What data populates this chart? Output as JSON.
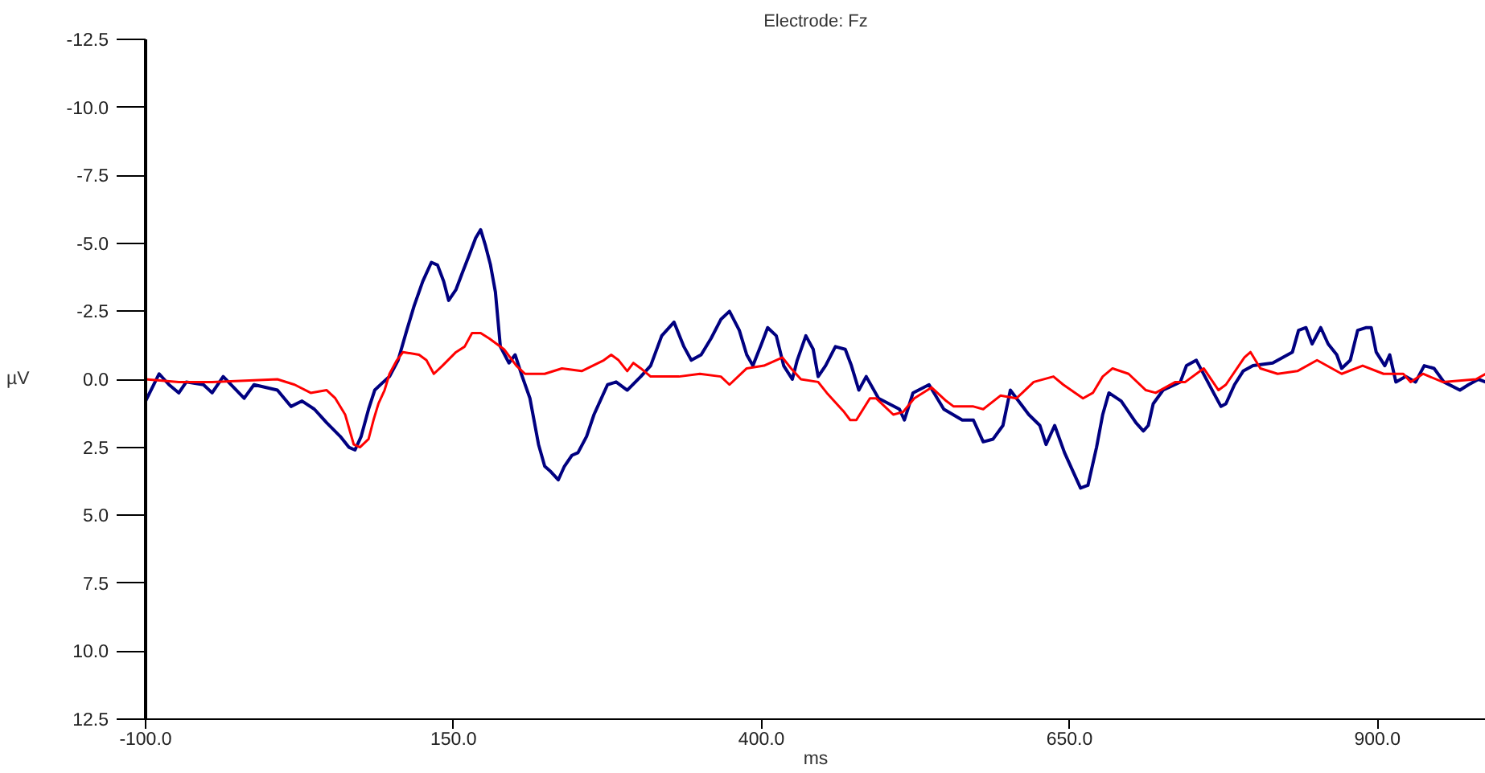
{
  "chart_data": {
    "type": "line",
    "title": "Electrode: Fz",
    "xlabel": "ms",
    "ylabel": "µV",
    "xlim": [
      -100,
      988
    ],
    "ylim": [
      12.5,
      -12.5
    ],
    "xticks": [
      {
        "value": -100,
        "label": "-100.0"
      },
      {
        "value": 150,
        "label": "150.0"
      },
      {
        "value": 400,
        "label": "400.0"
      },
      {
        "value": 650,
        "label": "650.0"
      },
      {
        "value": 900,
        "label": "900.0"
      }
    ],
    "yticks": [
      {
        "value": -12.5,
        "label": "-12.5"
      },
      {
        "value": -10,
        "label": "-10.0"
      },
      {
        "value": -7.5,
        "label": "-7.5"
      },
      {
        "value": -5,
        "label": "-5.0"
      },
      {
        "value": -2.5,
        "label": "-2.5"
      },
      {
        "value": 0,
        "label": "0.0"
      },
      {
        "value": 2.5,
        "label": "2.5"
      },
      {
        "value": 5,
        "label": "5.0"
      },
      {
        "value": 7.5,
        "label": "7.5"
      },
      {
        "value": 10,
        "label": "10.0"
      },
      {
        "value": 12.5,
        "label": "12.5"
      }
    ],
    "grid": false,
    "series": [
      {
        "color": "#000080",
        "x": [
          -100,
          -89,
          -81,
          -73,
          -67,
          -53,
          -46,
          -37,
          -20,
          -12,
          7,
          18,
          27,
          37,
          47,
          58,
          65,
          70,
          75,
          81,
          86,
          93,
          98,
          105,
          112,
          118,
          125,
          132,
          137,
          142,
          146,
          152,
          157,
          163,
          168,
          172,
          176,
          180,
          184,
          188,
          195,
          200,
          205,
          212,
          219,
          224,
          229,
          235,
          240,
          246,
          251,
          258,
          264,
          275,
          282,
          291,
          302,
          310,
          319,
          329,
          337,
          343,
          351,
          359,
          367,
          374,
          382,
          388,
          393,
          400,
          405,
          412,
          418,
          425,
          429,
          436,
          442,
          446,
          452,
          460,
          468,
          473,
          479,
          485,
          495,
          512,
          516,
          523,
          536,
          548,
          563,
          572,
          580,
          588,
          596,
          602,
          607,
          617,
          626,
          631,
          638,
          646,
          653,
          659,
          665,
          672,
          677,
          682,
          692,
          704,
          710,
          714,
          718,
          726,
          740,
          745,
          753,
          760,
          767,
          773,
          777,
          784,
          791,
          799,
          815,
          831,
          836,
          842,
          847,
          854,
          860,
          867,
          871,
          878,
          884,
          891,
          895,
          899,
          906,
          910,
          915,
          923,
          931,
          938,
          946,
          954,
          967,
          974,
          982,
          988
        ],
        "values": [
          0.8,
          -0.2,
          0.2,
          0.5,
          0.1,
          0.2,
          0.5,
          -0.1,
          0.7,
          0.2,
          0.4,
          1.0,
          0.8,
          1.1,
          1.6,
          2.1,
          2.5,
          2.6,
          2.1,
          1.1,
          0.4,
          0.1,
          -0.1,
          -0.7,
          -1.8,
          -2.7,
          -3.6,
          -4.3,
          -4.2,
          -3.6,
          -2.9,
          -3.3,
          -3.9,
          -4.6,
          -5.2,
          -5.5,
          -4.9,
          -4.2,
          -3.2,
          -1.2,
          -0.6,
          -0.9,
          -0.2,
          0.7,
          2.4,
          3.2,
          3.4,
          3.7,
          3.2,
          2.8,
          2.7,
          2.1,
          1.3,
          0.2,
          0.1,
          0.4,
          -0.1,
          -0.5,
          -1.6,
          -2.1,
          -1.2,
          -0.7,
          -0.9,
          -1.5,
          -2.2,
          -2.5,
          -1.8,
          -0.9,
          -0.5,
          -1.3,
          -1.9,
          -1.6,
          -0.5,
          0.0,
          -0.7,
          -1.6,
          -1.1,
          -0.1,
          -0.5,
          -1.2,
          -1.1,
          -0.5,
          0.4,
          -0.1,
          0.7,
          1.1,
          1.5,
          0.5,
          0.2,
          1.1,
          1.5,
          1.5,
          2.3,
          2.2,
          1.7,
          0.4,
          0.7,
          1.3,
          1.7,
          2.4,
          1.7,
          2.7,
          3.4,
          4.0,
          3.9,
          2.5,
          1.3,
          0.5,
          0.8,
          1.6,
          1.9,
          1.7,
          0.9,
          0.4,
          0.1,
          -0.5,
          -0.7,
          -0.1,
          0.5,
          1.0,
          0.9,
          0.2,
          -0.3,
          -0.5,
          -0.6,
          -1.0,
          -1.8,
          -1.9,
          -1.3,
          -1.9,
          -1.3,
          -0.9,
          -0.4,
          -0.7,
          -1.8,
          -1.9,
          -1.9,
          -1.0,
          -0.5,
          -0.9,
          0.1,
          -0.1,
          0.1,
          -0.5,
          -0.4,
          0.1,
          0.4,
          0.2,
          0.0,
          0.1
        ]
      },
      {
        "color": "#ff0000",
        "x": [
          -100,
          -73,
          -46,
          7,
          21,
          34,
          47,
          54,
          62,
          69,
          74,
          81,
          85,
          89,
          94,
          98,
          104,
          109,
          122,
          128,
          134,
          141,
          152,
          159,
          165,
          172,
          179,
          191,
          201,
          208,
          224,
          238,
          254,
          272,
          278,
          284,
          291,
          296,
          302,
          310,
          333,
          350,
          367,
          374,
          388,
          402,
          417,
          424,
          432,
          446,
          453,
          467,
          472,
          477,
          488,
          493,
          507,
          515,
          524,
          538,
          550,
          556,
          572,
          580,
          594,
          607,
          621,
          637,
          645,
          661,
          669,
          677,
          685,
          698,
          712,
          720,
          736,
          744,
          759,
          771,
          777,
          792,
          797,
          805,
          819,
          835,
          851,
          871,
          888,
          905,
          921,
          927,
          937,
          953,
          980,
          988
        ],
        "values": [
          0.0,
          0.1,
          0.1,
          0.0,
          0.2,
          0.5,
          0.4,
          0.7,
          1.3,
          2.4,
          2.5,
          2.2,
          1.5,
          0.9,
          0.4,
          -0.2,
          -0.7,
          -1.0,
          -0.9,
          -0.7,
          -0.2,
          -0.5,
          -1.0,
          -1.2,
          -1.7,
          -1.7,
          -1.5,
          -1.1,
          -0.5,
          -0.2,
          -0.2,
          -0.4,
          -0.3,
          -0.7,
          -0.9,
          -0.7,
          -0.3,
          -0.6,
          -0.4,
          -0.1,
          -0.1,
          -0.2,
          -0.1,
          0.2,
          -0.4,
          -0.5,
          -0.8,
          -0.4,
          0.0,
          0.1,
          0.5,
          1.2,
          1.5,
          1.5,
          0.7,
          0.7,
          1.3,
          1.2,
          0.7,
          0.3,
          0.8,
          1.0,
          1.0,
          1.1,
          0.6,
          0.7,
          0.1,
          -0.1,
          0.2,
          0.7,
          0.5,
          -0.1,
          -0.4,
          -0.2,
          0.4,
          0.5,
          0.1,
          0.1,
          -0.4,
          0.4,
          0.2,
          -0.8,
          -1.0,
          -0.4,
          -0.2,
          -0.3,
          -0.7,
          -0.2,
          -0.5,
          -0.2,
          -0.2,
          0.1,
          -0.2,
          0.1,
          0.0,
          -0.2
        ]
      }
    ]
  }
}
